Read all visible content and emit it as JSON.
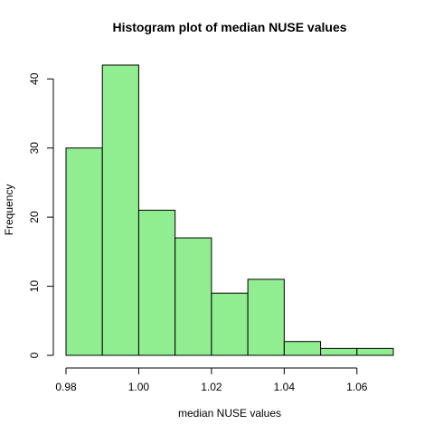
{
  "chart_data": {
    "type": "bar",
    "title": "Histogram plot of median NUSE values",
    "xlabel": "median NUSE values",
    "ylabel": "Frequency",
    "bins": [
      {
        "start": 0.98,
        "end": 0.99,
        "count": 30
      },
      {
        "start": 0.99,
        "end": 1.0,
        "count": 42
      },
      {
        "start": 1.0,
        "end": 1.01,
        "count": 21
      },
      {
        "start": 1.01,
        "end": 1.02,
        "count": 17
      },
      {
        "start": 1.02,
        "end": 1.03,
        "count": 9
      },
      {
        "start": 1.03,
        "end": 1.04,
        "count": 11
      },
      {
        "start": 1.04,
        "end": 1.05,
        "count": 2
      },
      {
        "start": 1.05,
        "end": 1.06,
        "count": 1
      },
      {
        "start": 1.06,
        "end": 1.07,
        "count": 1
      }
    ],
    "x_ticks": [
      0.98,
      1.0,
      1.02,
      1.04,
      1.06
    ],
    "x_tick_labels": [
      "0.98",
      "1.00",
      "1.02",
      "1.04",
      "1.06"
    ],
    "y_ticks": [
      0,
      10,
      20,
      30,
      40
    ],
    "y_tick_labels": [
      "0",
      "10",
      "20",
      "30",
      "40"
    ],
    "xlim": [
      0.98,
      1.07
    ],
    "ylim": [
      0,
      42
    ],
    "grid": false,
    "colors": {
      "bar_fill": "#90EE90",
      "bar_stroke": "#000000"
    }
  }
}
